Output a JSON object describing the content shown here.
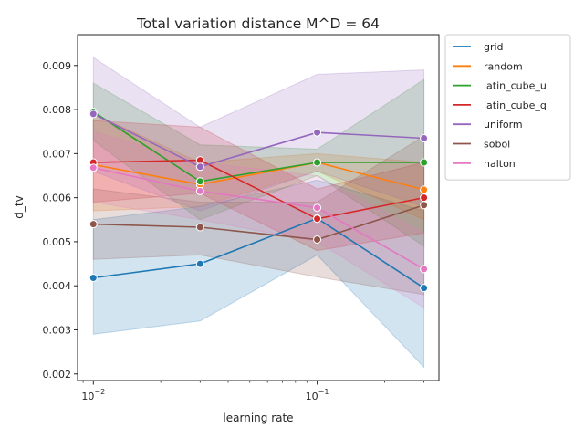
{
  "chart_data": {
    "type": "line",
    "title": "Total variation distance M^D = 64",
    "xlabel": "learning rate",
    "ylabel": "d_tv",
    "xscale": "log",
    "x": [
      0.01,
      0.03,
      0.1,
      0.3
    ],
    "xlim": [
      0.0085,
      0.35
    ],
    "ylim": [
      0.00185,
      0.0097
    ],
    "xticks": [
      0.01,
      0.1
    ],
    "xtick_labels": [
      {
        "base": "10",
        "exp": "−2"
      },
      {
        "base": "10",
        "exp": "−1"
      }
    ],
    "yticks": [
      0.002,
      0.003,
      0.004,
      0.005,
      0.006,
      0.007,
      0.008,
      0.009
    ],
    "ytick_labels": [
      "0.002",
      "0.003",
      "0.004",
      "0.005",
      "0.006",
      "0.007",
      "0.008",
      "0.009"
    ],
    "grid": false,
    "legend_position": "outside-top-right",
    "series": [
      {
        "name": "grid",
        "color": "#1f77b4",
        "values": [
          0.00418,
          0.0045,
          0.00553,
          0.00395
        ],
        "lower": [
          0.0029,
          0.0032,
          0.0047,
          0.00215
        ],
        "upper": [
          0.0055,
          0.0058,
          0.0064,
          0.0057
        ]
      },
      {
        "name": "random",
        "color": "#ff7f0e",
        "values": [
          0.00675,
          0.0063,
          0.0068,
          0.00618
        ],
        "lower": [
          0.0057,
          0.0058,
          0.0066,
          0.0055
        ],
        "upper": [
          0.0079,
          0.0068,
          0.007,
          0.0068
        ]
      },
      {
        "name": "latin_cube_u",
        "color": "#2ca02c",
        "values": [
          0.00795,
          0.00637,
          0.0068,
          0.0068
        ],
        "lower": [
          0.0073,
          0.0055,
          0.0065,
          0.0049
        ],
        "upper": [
          0.0086,
          0.0072,
          0.0071,
          0.00868
        ]
      },
      {
        "name": "latin_cube_q",
        "color": "#d62728",
        "values": [
          0.0068,
          0.00685,
          0.00552,
          0.006
        ],
        "lower": [
          0.0059,
          0.0061,
          0.0048,
          0.0052
        ],
        "upper": [
          0.00775,
          0.0076,
          0.0062,
          0.0068
        ]
      },
      {
        "name": "uniform",
        "color": "#9467bd",
        "values": [
          0.0079,
          0.0067,
          0.00748,
          0.00735
        ],
        "lower": [
          0.0066,
          0.0057,
          0.0066,
          0.0058
        ],
        "upper": [
          0.00918,
          0.0076,
          0.0088,
          0.0089
        ]
      },
      {
        "name": "sobol",
        "color": "#8c564b",
        "values": [
          0.0054,
          0.00533,
          0.00505,
          0.00583
        ],
        "lower": [
          0.0046,
          0.0047,
          0.0042,
          0.0038
        ],
        "upper": [
          0.0062,
          0.0059,
          0.0059,
          0.0074
        ]
      },
      {
        "name": "halton",
        "color": "#e377c2",
        "values": [
          0.00668,
          0.00615,
          0.00577,
          0.00438
        ],
        "lower": [
          0.0059,
          0.0055,
          0.005,
          0.0035
        ],
        "upper": [
          0.0075,
          0.0068,
          0.0065,
          0.0052
        ]
      }
    ]
  }
}
